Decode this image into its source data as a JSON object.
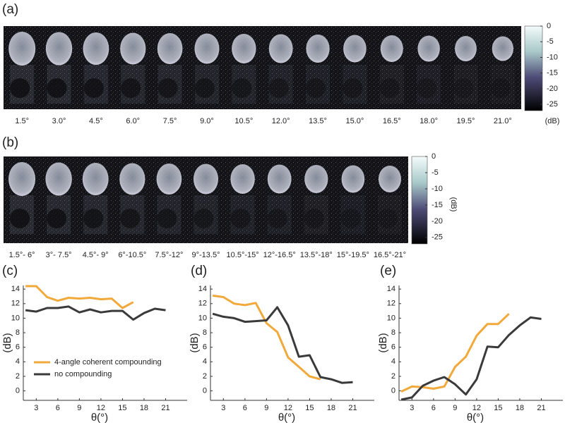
{
  "image_panels": [
    {
      "label": "(a)",
      "angles": [
        "1.5°",
        "3.0°",
        "4.5°",
        "6.0°",
        "7.5°",
        "9.0°",
        "10.5°",
        "12.0°",
        "13.5°",
        "15.0°",
        "16.5°",
        "18.0°",
        "19.5°",
        "21.0°"
      ],
      "colorbar": {
        "lim": [
          -27,
          0
        ],
        "ticks": [
          0,
          -5,
          -10,
          -15,
          -20,
          -25
        ],
        "unit": "(dB)"
      }
    },
    {
      "label": "(b)",
      "angles": [
        "1.5°- 6°",
        "3°- 7.5°",
        "4.5°- 9°",
        "6°-10.5°",
        "7.5°-12°",
        "9°-13.5°",
        "10.5°-15°",
        "12°-16.5°",
        "13.5°-18°",
        "15°-19.5°",
        "16.5°-21°"
      ],
      "colorbar": {
        "lim": [
          -27,
          0
        ],
        "ticks": [
          0,
          -5,
          -10,
          -15,
          -20,
          -25
        ],
        "unit": "(dB)"
      }
    }
  ],
  "chart_data": [
    {
      "type": "line",
      "panel_label": "(c)",
      "ylabel": "(dB)",
      "xlabel": "θ(°)",
      "xlim": [
        1.2,
        24
      ],
      "ylim": [
        -1.3,
        14.5
      ],
      "xticks": [
        3,
        6,
        9,
        12,
        15,
        18,
        21
      ],
      "yticks": [
        0,
        2,
        4,
        6,
        8,
        10,
        12,
        14
      ],
      "legend": "lower left",
      "series": [
        {
          "name": "4-angle coherent compounding",
          "color": "#f2a93b",
          "x": [
            1.5,
            3,
            4.5,
            6,
            7.5,
            9,
            10.5,
            12,
            13.5,
            15,
            16.5
          ],
          "values": [
            14.4,
            14.4,
            12.9,
            12.4,
            12.8,
            12.7,
            12.8,
            12.6,
            12.7,
            11.4,
            12.2
          ]
        },
        {
          "name": "no compounding",
          "color": "#3a3a3a",
          "x": [
            1.5,
            3,
            4.5,
            6,
            7.5,
            9,
            10.5,
            12,
            13.5,
            15,
            16.5,
            18,
            19.5,
            21
          ],
          "values": [
            11.1,
            10.9,
            11.4,
            11.4,
            11.6,
            10.8,
            11.2,
            10.8,
            11.0,
            11.0,
            9.8,
            10.7,
            11.3,
            11.1
          ]
        }
      ]
    },
    {
      "type": "line",
      "panel_label": "(d)",
      "ylabel": "(dB)",
      "xlabel": "θ(°)",
      "xlim": [
        1.2,
        24
      ],
      "ylim": [
        -1.3,
        14.5
      ],
      "xticks": [
        3,
        6,
        9,
        12,
        15,
        18,
        21
      ],
      "yticks": [
        0,
        2,
        4,
        6,
        8,
        10,
        12,
        14
      ],
      "series": [
        {
          "color": "#f2a93b",
          "x": [
            1.5,
            3,
            4.5,
            6,
            7.5,
            9,
            10.5,
            12,
            13.5,
            15,
            16.5
          ],
          "values": [
            13.1,
            12.9,
            12.0,
            11.8,
            12.1,
            9.3,
            8.1,
            4.6,
            3.3,
            2.0,
            1.6
          ]
        },
        {
          "color": "#3a3a3a",
          "x": [
            1.5,
            3,
            4.5,
            6,
            7.5,
            9,
            10.5,
            12,
            13.5,
            15,
            16.5,
            18,
            19.5,
            21
          ],
          "values": [
            10.6,
            10.2,
            10.0,
            9.5,
            9.6,
            9.7,
            11.5,
            9.0,
            4.7,
            4.9,
            1.9,
            1.6,
            1.1,
            1.2
          ]
        }
      ]
    },
    {
      "type": "line",
      "panel_label": "(e)",
      "ylabel": "(dB)",
      "xlabel": "θ(°)",
      "xlim": [
        1.2,
        24
      ],
      "ylim": [
        -1.3,
        14.5
      ],
      "xticks": [
        3,
        6,
        9,
        12,
        15,
        18,
        21
      ],
      "yticks": [
        0,
        2,
        4,
        6,
        8,
        10,
        12,
        14
      ],
      "series": [
        {
          "color": "#f2a93b",
          "x": [
            1.5,
            3,
            4.5,
            6,
            7.5,
            9,
            10.5,
            12,
            13.5,
            15,
            16.5
          ],
          "values": [
            -0.1,
            0.6,
            0.5,
            0.3,
            0.6,
            3.3,
            4.7,
            7.6,
            9.2,
            9.2,
            10.6
          ]
        },
        {
          "color": "#3a3a3a",
          "x": [
            1.5,
            3,
            4.5,
            6,
            7.5,
            9,
            10.5,
            12,
            13.5,
            15,
            16.5,
            18,
            19.5,
            21
          ],
          "values": [
            -1.2,
            -0.9,
            0.7,
            1.4,
            1.9,
            0.9,
            -0.5,
            1.6,
            6.1,
            6.0,
            7.7,
            9.0,
            10.1,
            9.9
          ]
        }
      ]
    }
  ]
}
